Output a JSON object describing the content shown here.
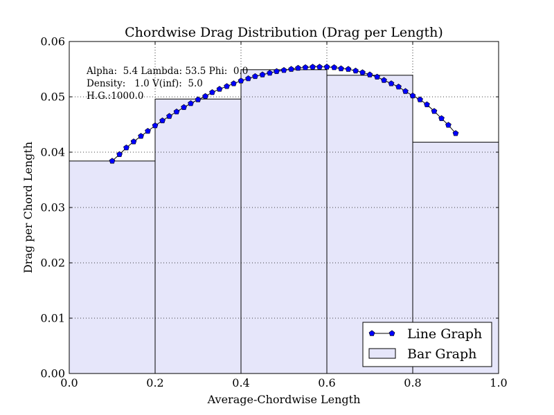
{
  "chart_data": {
    "type": "bar",
    "title": "Chordwise Drag Distribution (Drag per Length)",
    "xlabel": "Average-Chordwise Length",
    "ylabel": "Drag per Chord Length",
    "xlim": [
      0.0,
      1.0
    ],
    "ylim": [
      0.0,
      0.06
    ],
    "x_ticks": [
      "0.0",
      "0.2",
      "0.4",
      "0.6",
      "0.8",
      "1.0"
    ],
    "y_ticks": [
      "0.00",
      "0.01",
      "0.02",
      "0.03",
      "0.04",
      "0.05",
      "0.06"
    ],
    "grid": true,
    "legend_position": "lower-right",
    "annotations": [
      "Alpha:  5.4 Lambda: 53.5 Phi:  0.0",
      "Density:   1.0 V(inf):  5.0",
      "H.G.:1000.0"
    ],
    "bars": {
      "name": "Bar Graph",
      "color": "#e6e6fa",
      "edge_color": "#000000",
      "bins": [
        {
          "x0": 0.0,
          "x1": 0.2,
          "value": 0.0384
        },
        {
          "x0": 0.2,
          "x1": 0.4,
          "value": 0.0496
        },
        {
          "x0": 0.4,
          "x1": 0.6,
          "value": 0.0549
        },
        {
          "x0": 0.6,
          "x1": 0.8,
          "value": 0.0539
        },
        {
          "x0": 0.8,
          "x1": 1.0,
          "value": 0.0418
        }
      ]
    },
    "line": {
      "name": "Line Graph",
      "color": "#0000ff",
      "marker": "pentagon",
      "x": [
        0.1,
        0.117,
        0.133,
        0.15,
        0.167,
        0.183,
        0.2,
        0.217,
        0.233,
        0.25,
        0.267,
        0.283,
        0.3,
        0.317,
        0.333,
        0.35,
        0.367,
        0.383,
        0.4,
        0.417,
        0.433,
        0.45,
        0.467,
        0.483,
        0.5,
        0.517,
        0.533,
        0.55,
        0.567,
        0.583,
        0.6,
        0.617,
        0.633,
        0.65,
        0.667,
        0.683,
        0.7,
        0.717,
        0.733,
        0.75,
        0.767,
        0.783,
        0.8,
        0.817,
        0.833,
        0.85,
        0.867,
        0.883,
        0.9
      ],
      "y": [
        0.0384,
        0.0396,
        0.0408,
        0.0419,
        0.0429,
        0.0438,
        0.0448,
        0.0457,
        0.0465,
        0.0473,
        0.0481,
        0.0488,
        0.0495,
        0.0501,
        0.0508,
        0.0514,
        0.0519,
        0.0524,
        0.0529,
        0.0533,
        0.0537,
        0.054,
        0.0543,
        0.0546,
        0.0548,
        0.055,
        0.0552,
        0.0553,
        0.0554,
        0.0554,
        0.0554,
        0.0553,
        0.0551,
        0.055,
        0.0547,
        0.0544,
        0.054,
        0.0536,
        0.053,
        0.0524,
        0.0518,
        0.051,
        0.0502,
        0.0495,
        0.0486,
        0.0474,
        0.0461,
        0.0449,
        0.0434
      ]
    }
  }
}
